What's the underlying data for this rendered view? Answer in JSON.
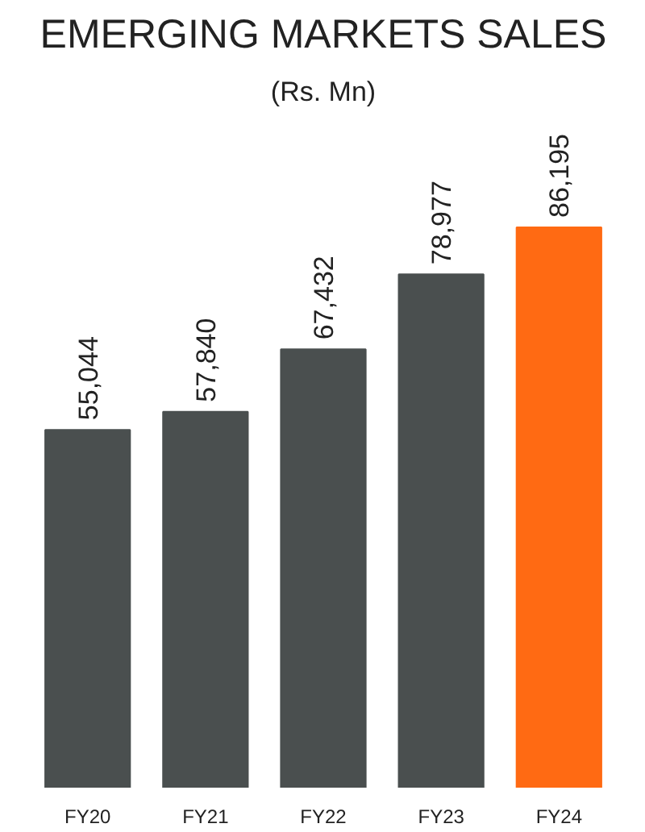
{
  "chart_data": {
    "type": "bar",
    "title": "EMERGING MARKETS SALES",
    "subtitle": "(Rs. Mn)",
    "categories": [
      "FY20",
      "FY21",
      "FY22",
      "FY23",
      "FY24"
    ],
    "values": [
      55044,
      57840,
      67432,
      78977,
      86195
    ],
    "colors": [
      "#4a4f4f",
      "#4a4f4f",
      "#4a4f4f",
      "#4a4f4f",
      "#ff6a13"
    ],
    "value_labels": [
      "55,044",
      "57,840",
      "67,432",
      "78,977",
      "86,195"
    ]
  }
}
